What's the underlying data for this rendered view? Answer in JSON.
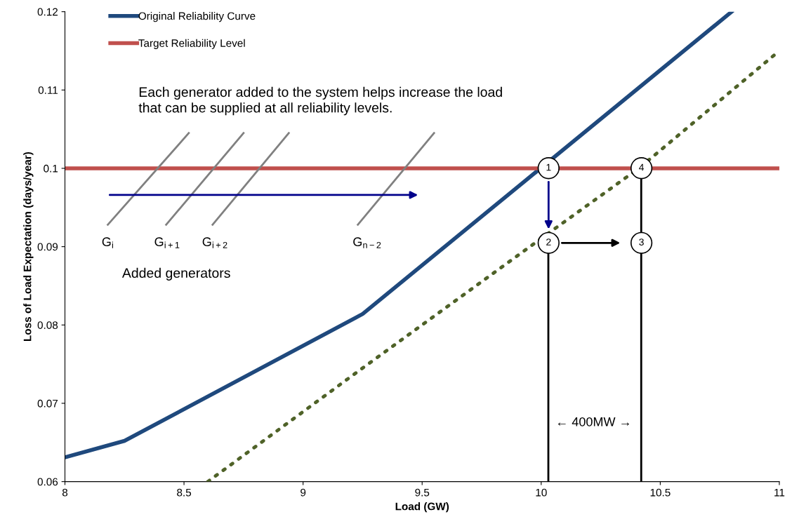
{
  "chart_data": {
    "type": "line",
    "xlabel": "Load (GW)",
    "ylabel": "Loss of Load Expectation (days/year)",
    "xlim": [
      8,
      11
    ],
    "xticks": [
      8,
      8.5,
      9,
      9.5,
      10,
      10.5,
      11
    ],
    "ylim": [
      0.06,
      0.12
    ],
    "yticks": [
      0.06,
      0.07,
      0.08,
      0.09,
      0.1,
      0.11,
      0.12
    ],
    "grid": false,
    "legend": "top left",
    "series": [
      {
        "name": "Original Reliability Curve",
        "color": "#1f497d",
        "x": [
          8,
          8.25,
          9.25,
          10.8
        ],
        "values": [
          0.0631,
          0.0652,
          0.0814,
          0.12
        ],
        "line_style": "solid"
      },
      {
        "name": "Target Reliability Level",
        "color": "#c0504d",
        "x": [
          8,
          11
        ],
        "values": [
          0.1,
          0.1
        ],
        "line_style": "solid"
      },
      {
        "color": "#4f6228",
        "x": [
          8.6,
          9.25,
          10.03,
          10.41,
          11
        ],
        "values": [
          0.06,
          0.0745,
          0.0917,
          0.1,
          0.115
        ],
        "line_style": "dotted"
      },
      {
        "color": "#808080",
        "x": [
          8.18,
          8.52
        ],
        "values": [
          0.0928,
          0.1045
        ],
        "line_style": "solid"
      },
      {
        "color": "#808080",
        "x": [
          8.425,
          8.75
        ],
        "values": [
          0.0928,
          0.1045
        ],
        "line_style": "solid"
      },
      {
        "color": "#808080",
        "x": [
          8.62,
          8.94
        ],
        "values": [
          0.0928,
          0.1045
        ],
        "line_style": "solid"
      },
      {
        "color": "#808080",
        "x": [
          9.23,
          9.55
        ],
        "values": [
          0.0928,
          0.1045
        ],
        "line_style": "solid"
      },
      {
        "color": "#000000",
        "x": [
          10.03,
          10.03
        ],
        "values": [
          0.06,
          0.0905
        ],
        "line_style": "solid"
      },
      {
        "color": "#000000",
        "x": [
          10.42,
          10.42
        ],
        "values": [
          0.06,
          0.1
        ],
        "line_style": "solid"
      }
    ],
    "annotations": [
      "Each generator added to the system helps increase the load\nthat can be supplied at all reliability levels.",
      "Added generators",
      "← 400MW →",
      "G$_{i}$",
      "G$_{i+1}$",
      "G$_{i+2}$",
      "G$_{n−2}$",
      "1",
      "2",
      "3",
      "4"
    ]
  }
}
